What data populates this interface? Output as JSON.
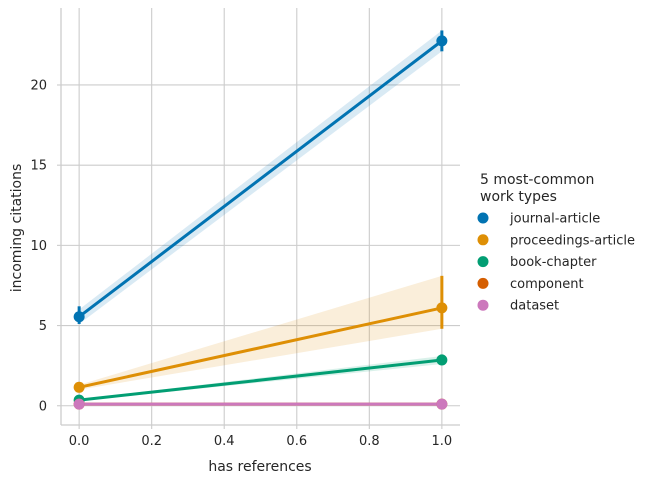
{
  "chart_data": {
    "type": "line",
    "xlabel": "has references",
    "ylabel": "incoming citations",
    "xlim": [
      -0.05,
      1.05
    ],
    "ylim": [
      -1.2,
      24.8
    ],
    "xticks": [
      0.0,
      0.2,
      0.4,
      0.6,
      0.8,
      1.0
    ],
    "xtick_labels": [
      "0.0",
      "0.2",
      "0.4",
      "0.6",
      "0.8",
      "1.0"
    ],
    "yticks": [
      0,
      5,
      10,
      15,
      20
    ],
    "ytick_labels": [
      "0",
      "5",
      "10",
      "15",
      "20"
    ],
    "grid": true,
    "legend": {
      "title_line1": "5 most-common",
      "title_line2": "work types",
      "placement": "right, outside plot"
    },
    "x": [
      0,
      1
    ],
    "series": [
      {
        "name": "journal-article",
        "color": "#0173b2",
        "values": [
          5.55,
          22.75
        ],
        "ci_low": [
          5.1,
          22.1
        ],
        "ci_high": [
          6.2,
          23.4
        ],
        "band_low": [
          5.1,
          22.1
        ],
        "band_high": [
          6.0,
          23.4
        ]
      },
      {
        "name": "proceedings-article",
        "color": "#de8f05",
        "values": [
          1.15,
          6.1
        ],
        "ci_low": [
          1.0,
          4.8
        ],
        "ci_high": [
          1.3,
          8.1
        ],
        "band_low": [
          1.0,
          4.8
        ],
        "band_high": [
          1.3,
          8.1
        ]
      },
      {
        "name": "book-chapter",
        "color": "#029e73",
        "values": [
          0.35,
          2.85
        ],
        "ci_low": [
          0.3,
          2.6
        ],
        "ci_high": [
          0.4,
          3.2
        ],
        "band_low": [
          0.3,
          2.6
        ],
        "band_high": [
          0.4,
          3.1
        ]
      },
      {
        "name": "component",
        "color": "#d55e00",
        "values": [
          0.1,
          0.1
        ],
        "ci_low": [
          0.1,
          0.1
        ],
        "ci_high": [
          0.1,
          0.1
        ],
        "band_low": [
          0.1,
          0.1
        ],
        "band_high": [
          0.1,
          0.1
        ]
      },
      {
        "name": "dataset",
        "color": "#cc78bc",
        "values": [
          0.1,
          0.1
        ],
        "ci_low": [
          0.1,
          0.1
        ],
        "ci_high": [
          0.1,
          0.1
        ],
        "band_low": [
          0.1,
          0.1
        ],
        "band_high": [
          0.1,
          0.1
        ]
      }
    ]
  }
}
